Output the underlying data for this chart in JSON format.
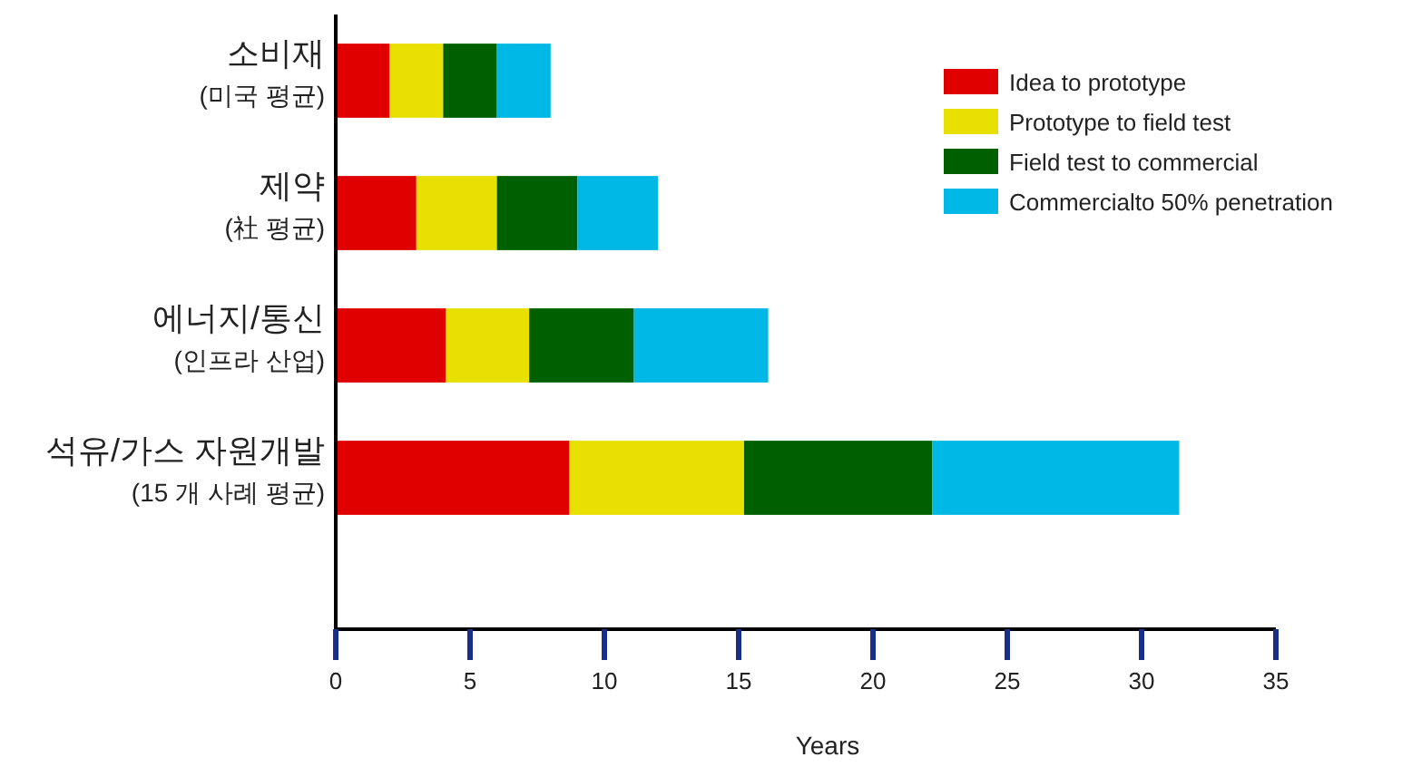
{
  "chart_data": {
    "type": "bar",
    "orientation": "horizontal",
    "stacked": true,
    "xlabel": "Years",
    "categories": [
      "소비재\n(미국 평균)",
      "제약\n(社 평균)",
      "에너지/통신\n(인프라 산업)",
      "석유/가스 자원개발\n(15 개 사례 평균)"
    ],
    "series": [
      {
        "name": "Idea to prototype",
        "color": "#e00000",
        "values": [
          2,
          3,
          4.1,
          8.7
        ]
      },
      {
        "name": "Prototype to field test",
        "color": "#e8e000",
        "values": [
          2,
          3,
          3.1,
          6.5
        ]
      },
      {
        "name": "Field test to commercial",
        "color": "#006000",
        "values": [
          2,
          3,
          3.9,
          7
        ]
      },
      {
        "name": "Commercialto 50% penetration",
        "color": "#00b8e6",
        "values": [
          2,
          3,
          5,
          9.2
        ]
      }
    ],
    "xlim": [
      0,
      35
    ],
    "xticks": [
      0,
      5,
      10,
      15,
      20,
      25,
      30,
      35
    ],
    "legend": "top right"
  }
}
